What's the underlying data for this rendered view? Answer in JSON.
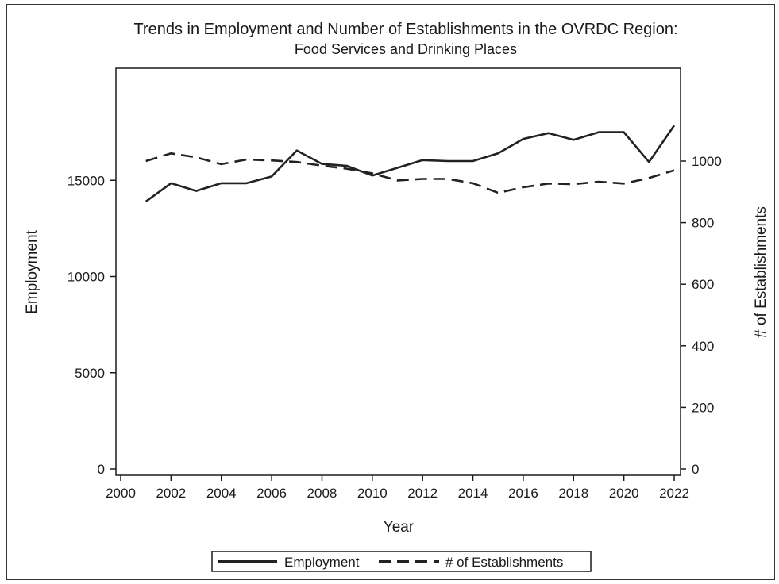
{
  "chart_data": {
    "type": "line",
    "title": "Trends in Employment and Number of Establishments in the OVRDC Region:",
    "subtitle": "Food Services and Drinking Places",
    "xlabel": "Year",
    "ylabel_left": "Employment",
    "ylabel_right": "# of Establishments",
    "xlim": [
      2000,
      2022
    ],
    "ylim_left": [
      0,
      20000
    ],
    "ylim_right": [
      0,
      1250
    ],
    "x_ticks": [
      2000,
      2002,
      2004,
      2006,
      2008,
      2010,
      2012,
      2014,
      2016,
      2018,
      2020,
      2022
    ],
    "y_left_ticks": [
      0,
      5000,
      10000,
      15000
    ],
    "y_right_ticks": [
      0,
      200,
      400,
      600,
      800,
      1000
    ],
    "x": [
      2001,
      2002,
      2003,
      2004,
      2005,
      2006,
      2007,
      2008,
      2009,
      2010,
      2011,
      2012,
      2013,
      2014,
      2015,
      2016,
      2017,
      2018,
      2019,
      2020,
      2021,
      2022
    ],
    "series": [
      {
        "name": "Employment",
        "axis": "left",
        "style": "solid",
        "values": [
          13900,
          14850,
          14450,
          14850,
          14850,
          15200,
          16550,
          15850,
          15750,
          15250,
          15650,
          16050,
          16000,
          16000,
          16400,
          17150,
          17450,
          17100,
          17500,
          17500,
          15950,
          17850
        ]
      },
      {
        "name": "# of Establishments",
        "axis": "right",
        "style": "dashed",
        "values": [
          1000,
          1025,
          1012,
          990,
          1005,
          1002,
          997,
          985,
          975,
          960,
          937,
          942,
          942,
          928,
          897,
          915,
          927,
          925,
          933,
          927,
          945,
          970
        ]
      }
    ],
    "legend_position": "bottom-center",
    "grid": false,
    "colors": {
      "line": "#222222",
      "axis": "#1a1a1a",
      "frame": "#333333"
    }
  }
}
